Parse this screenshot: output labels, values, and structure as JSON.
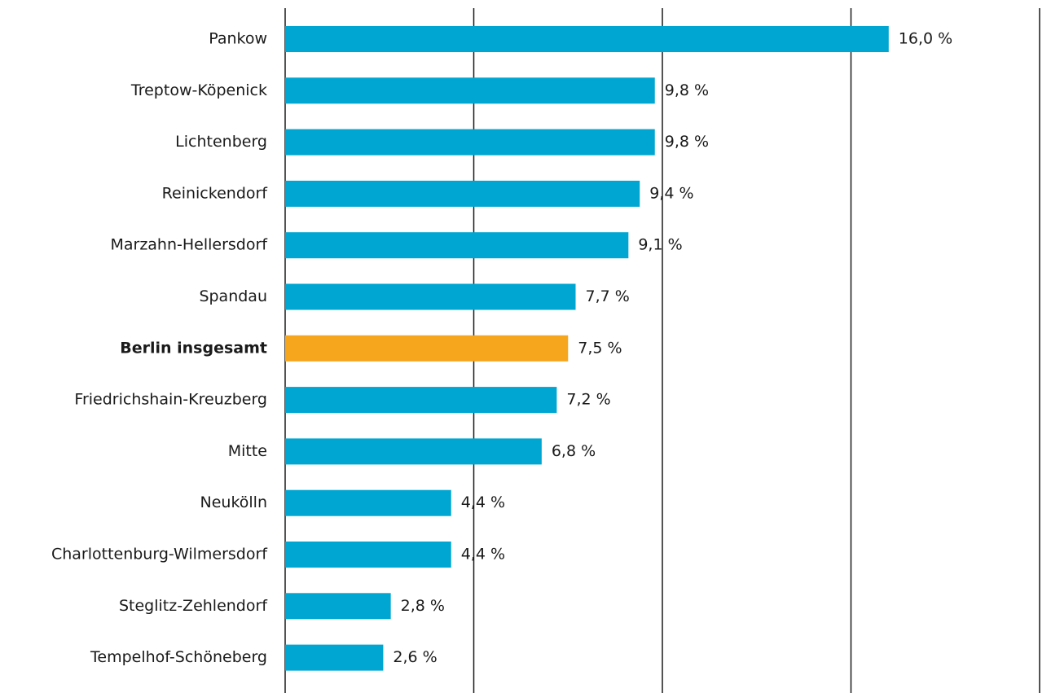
{
  "chart_data": {
    "type": "bar",
    "orientation": "horizontal",
    "categories": [
      "Pankow",
      "Treptow-Köpenick",
      "Lichtenberg",
      "Reinickendorf",
      "Marzahn-Hellersdorf",
      "Spandau",
      "Berlin insgesamt",
      "Friedrichshain-Kreuzberg",
      "Mitte",
      "Neukölln",
      "Charlottenburg-Wilmersdorf",
      "Steglitz-Zehlendorf",
      "Tempelhof-Schöneberg"
    ],
    "values": [
      16.0,
      9.8,
      9.8,
      9.4,
      9.1,
      7.7,
      7.5,
      7.2,
      6.8,
      4.4,
      4.4,
      2.8,
      2.6
    ],
    "value_labels": [
      "16,0 %",
      "9,8 %",
      "9,8 %",
      "9,4 %",
      "9,1 %",
      "7,7 %",
      "7,5 %",
      "7,2 %",
      "6,8 %",
      "4,4 %",
      "4,4 %",
      "2,8 %",
      "2,6 %"
    ],
    "colors": [
      "#00a6d2",
      "#00a6d2",
      "#00a6d2",
      "#00a6d2",
      "#00a6d2",
      "#00a6d2",
      "#f6a61d",
      "#00a6d2",
      "#00a6d2",
      "#00a6d2",
      "#00a6d2",
      "#00a6d2",
      "#00a6d2"
    ],
    "xlim": [
      0,
      20
    ],
    "xticks": [
      0,
      5,
      10,
      15,
      20
    ],
    "grid": true
  }
}
